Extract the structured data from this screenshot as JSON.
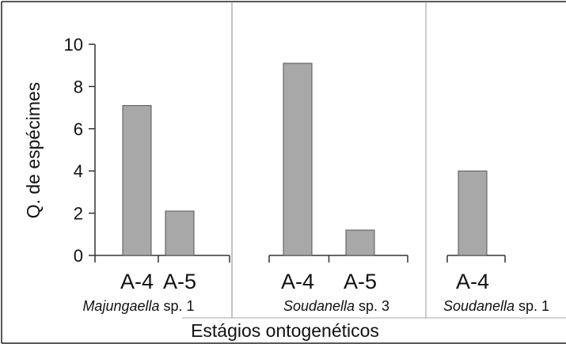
{
  "chart_data": {
    "type": "bar",
    "ylabel": "Q. de espécimes",
    "xlabel": "Estágios ontogenéticos",
    "ylim": [
      0,
      10
    ],
    "yticks": [
      "0",
      "2",
      "4",
      "6",
      "8",
      "10"
    ],
    "bar_color": "#a8a8a8",
    "groups": [
      {
        "label": {
          "italic": "Majungaella",
          "rest": " sp. 1"
        },
        "bars": [
          {
            "category": "A-4",
            "value": 7.1
          },
          {
            "category": "A-5",
            "value": 2.1
          }
        ]
      },
      {
        "label": {
          "italic": "Soudanella",
          "rest": " sp. 3"
        },
        "bars": [
          {
            "category": "A-4",
            "value": 9.1
          },
          {
            "category": "A-5",
            "value": 1.2
          }
        ]
      },
      {
        "label": {
          "italic": "Soudanella",
          "rest": " sp. 1"
        },
        "bars": [
          {
            "category": "A-4",
            "value": 4.0
          }
        ]
      }
    ]
  }
}
